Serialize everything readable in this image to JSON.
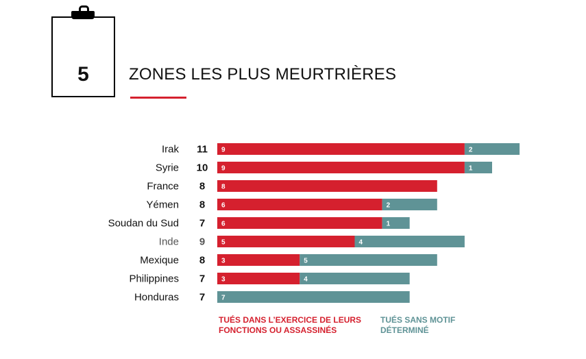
{
  "section": {
    "number": "5",
    "title": "ZONES LES PLUS MEURTRIÈRES"
  },
  "colors": {
    "killed": "#d5202e",
    "unknown": "#5f9396",
    "text": "#111111",
    "muted": "#555555"
  },
  "legend": {
    "killed": "TUÉS DANS L’EXERCICE DE LEURS FONCTIONS OU ASSASSINÉS",
    "unknown": "TUÉS SANS MOTIF DÉTERMINÉ"
  },
  "chart_data": {
    "type": "bar",
    "orientation": "horizontal",
    "stacked": true,
    "categories": [
      "Irak",
      "Syrie",
      "France",
      "Yémen",
      "Soudan du Sud",
      "Inde",
      "Mexique",
      "Philippines",
      "Honduras"
    ],
    "totals": [
      11,
      10,
      8,
      8,
      7,
      9,
      8,
      7,
      7
    ],
    "series": [
      {
        "name": "TUÉS DANS L’EXERCICE DE LEURS FONCTIONS OU ASSASSINÉS",
        "values": [
          9,
          9,
          8,
          6,
          6,
          5,
          3,
          3,
          0
        ]
      },
      {
        "name": "TUÉS SANS MOTIF DÉTERMINÉ",
        "values": [
          2,
          1,
          0,
          2,
          1,
          4,
          5,
          4,
          7
        ]
      }
    ],
    "highlighted_category": "Inde",
    "legend_position": "bottom",
    "grid": false
  }
}
